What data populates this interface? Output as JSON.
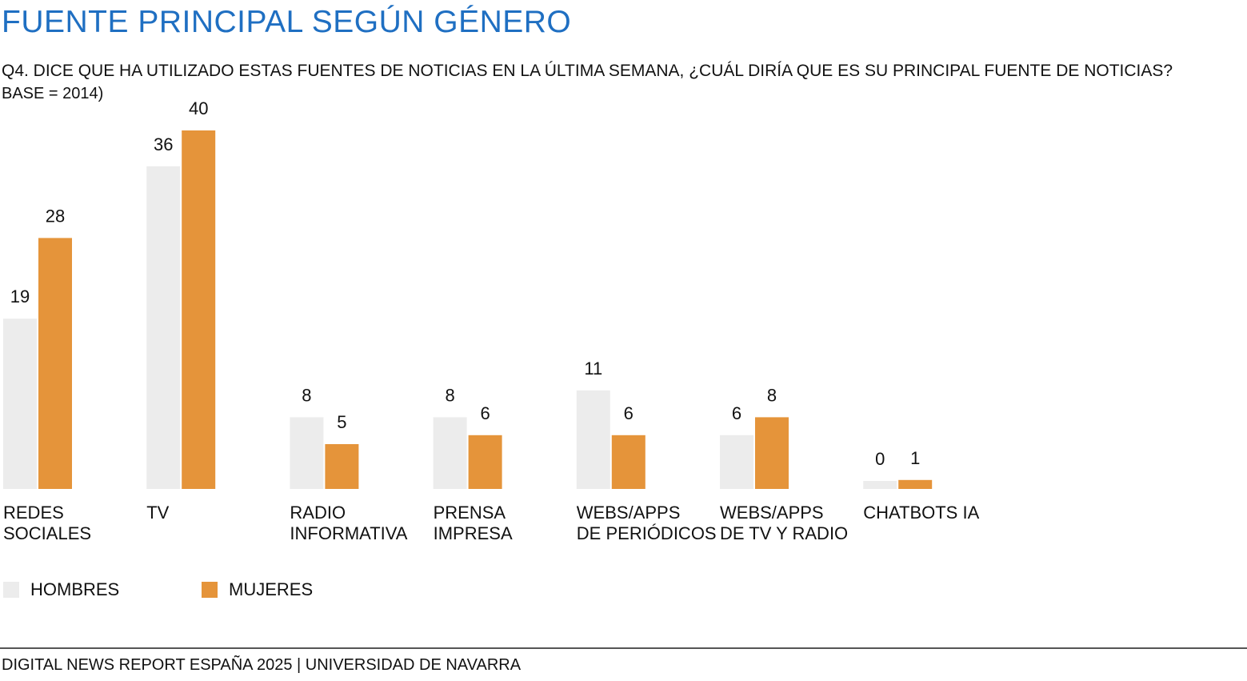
{
  "header": {
    "title": "FUENTE PRINCIPAL SEGÚN GÉNERO",
    "subtitle": "Q4. DICE QUE HA UTILIZADO ESTAS FUENTES DE NOTICIAS EN LA ÚLTIMA SEMANA, ¿CUÁL DIRÍA QUE ES SU PRINCIPAL FUENTE DE NOTICIAS?",
    "base": "BASE = 2014)"
  },
  "footer": {
    "text": "DIGITAL NEWS REPORT ESPAÑA 2025 | UNIVERSIDAD DE NAVARRA"
  },
  "colors": {
    "title": "#1f6fc2",
    "hombres": "#ececec",
    "mujeres": "#e5943a"
  },
  "chart_data": {
    "type": "bar",
    "title": "FUENTE PRINCIPAL SEGÚN GÉNERO",
    "categories": [
      "REDES\nSOCIALES",
      "TV",
      "RADIO\nINFORMATIVA",
      "PRENSA\nIMPRESA",
      "WEBS/APPS\nDE PERIÓDICOS",
      "WEBS/APPS\nDE TV Y RADIO",
      "CHATBOTS IA"
    ],
    "series": [
      {
        "name": "HOMBRES",
        "values": [
          19,
          36,
          8,
          8,
          11,
          6,
          0
        ],
        "color": "#ececec"
      },
      {
        "name": "MUJERES",
        "values": [
          28,
          40,
          5,
          6,
          6,
          8,
          1
        ],
        "color": "#e5943a"
      }
    ],
    "ylim": [
      0,
      40
    ],
    "grid": false,
    "legend": "bottom-left",
    "xlabel": "",
    "ylabel": ""
  }
}
